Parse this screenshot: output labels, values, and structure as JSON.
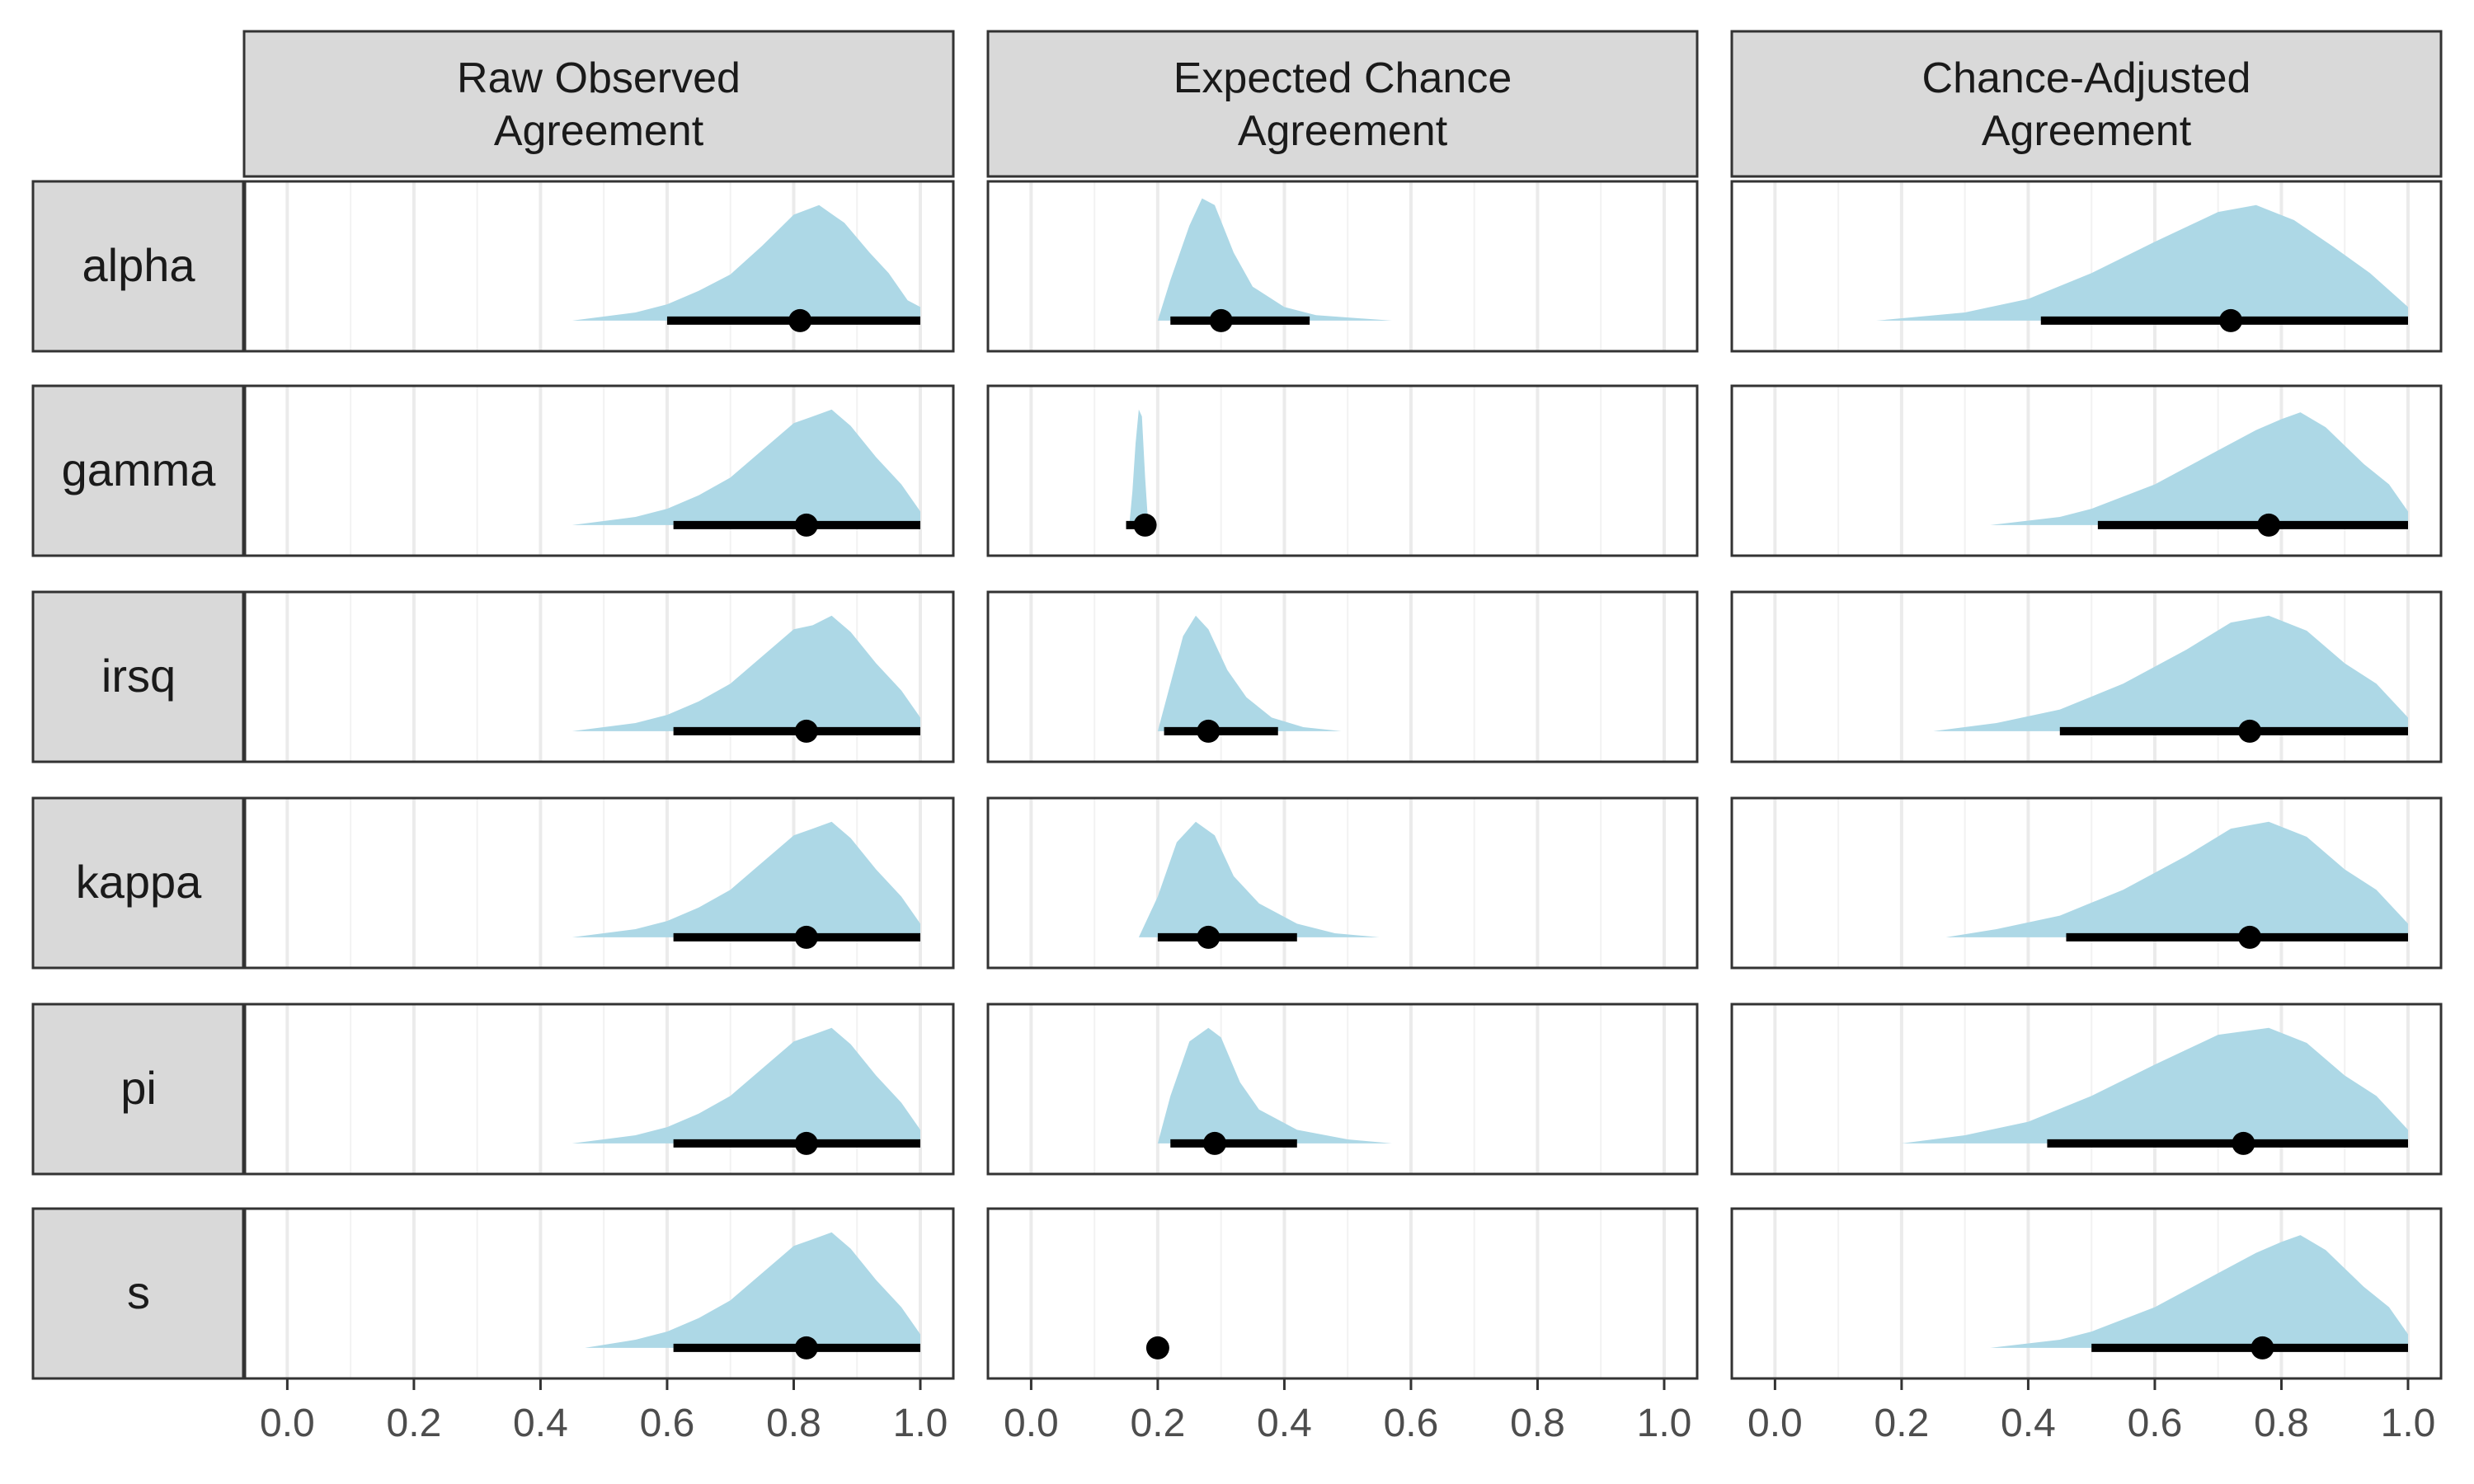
{
  "chart_data": {
    "type": "area",
    "title": "",
    "xlabel": "",
    "ylabel": "",
    "xlim": [
      -0.05,
      1.0
    ],
    "x_ticks": [
      "0.0",
      "0.2",
      "0.4",
      "0.6",
      "0.8",
      "1.0"
    ],
    "grid": true,
    "colors": {
      "density": "#add8e6",
      "interval": "#000000",
      "strip": "#d9d9d9",
      "panel_border": "#333333",
      "grid": "#ebebeb"
    },
    "columns": [
      {
        "key": "raw",
        "label_lines": [
          "Raw Observed",
          "Agreement"
        ]
      },
      {
        "key": "expected",
        "label_lines": [
          "Expected Chance",
          "Agreement"
        ]
      },
      {
        "key": "adjusted",
        "label_lines": [
          "Chance-Adjusted",
          "Agreement"
        ]
      }
    ],
    "rows": [
      "alpha",
      "gamma",
      "irsq",
      "kappa",
      "pi",
      "s"
    ],
    "cells": {
      "alpha": {
        "raw": {
          "density": [
            [
              0.45,
              0.0
            ],
            [
              0.55,
              0.06
            ],
            [
              0.6,
              0.12
            ],
            [
              0.65,
              0.22
            ],
            [
              0.7,
              0.34
            ],
            [
              0.75,
              0.55
            ],
            [
              0.8,
              0.78
            ],
            [
              0.84,
              0.85
            ],
            [
              0.88,
              0.72
            ],
            [
              0.92,
              0.5
            ],
            [
              0.95,
              0.35
            ],
            [
              0.98,
              0.15
            ],
            [
              1.0,
              0.1
            ]
          ],
          "point": 0.81,
          "interval": [
            0.6,
            1.0
          ]
        },
        "expected": {
          "density": [
            [
              0.2,
              0.0
            ],
            [
              0.22,
              0.3
            ],
            [
              0.25,
              0.7
            ],
            [
              0.27,
              0.9
            ],
            [
              0.29,
              0.85
            ],
            [
              0.32,
              0.5
            ],
            [
              0.35,
              0.25
            ],
            [
              0.4,
              0.1
            ],
            [
              0.45,
              0.04
            ],
            [
              0.57,
              0.0
            ]
          ],
          "point": 0.3,
          "interval": [
            0.22,
            0.44
          ]
        },
        "adjusted": {
          "density": [
            [
              0.16,
              0.0
            ],
            [
              0.3,
              0.06
            ],
            [
              0.4,
              0.16
            ],
            [
              0.5,
              0.35
            ],
            [
              0.6,
              0.58
            ],
            [
              0.7,
              0.8
            ],
            [
              0.76,
              0.85
            ],
            [
              0.82,
              0.74
            ],
            [
              0.88,
              0.55
            ],
            [
              0.94,
              0.35
            ],
            [
              1.0,
              0.1
            ]
          ],
          "point": 0.72,
          "interval": [
            0.42,
            1.0
          ]
        }
      },
      "gamma": {
        "raw": {
          "density": [
            [
              0.45,
              0.0
            ],
            [
              0.55,
              0.06
            ],
            [
              0.6,
              0.12
            ],
            [
              0.65,
              0.22
            ],
            [
              0.7,
              0.35
            ],
            [
              0.75,
              0.55
            ],
            [
              0.8,
              0.75
            ],
            [
              0.83,
              0.8
            ],
            [
              0.86,
              0.85
            ],
            [
              0.89,
              0.73
            ],
            [
              0.93,
              0.5
            ],
            [
              0.97,
              0.3
            ],
            [
              1.0,
              0.1
            ]
          ],
          "point": 0.82,
          "interval": [
            0.61,
            1.0
          ]
        },
        "expected": {
          "density": [
            [
              0.155,
              0.0
            ],
            [
              0.16,
              0.25
            ],
            [
              0.165,
              0.6
            ],
            [
              0.17,
              0.85
            ],
            [
              0.175,
              0.8
            ],
            [
              0.18,
              0.35
            ],
            [
              0.185,
              0.0
            ]
          ],
          "point": 0.18,
          "interval": [
            0.15,
            0.18
          ]
        },
        "adjusted": {
          "density": [
            [
              0.34,
              0.0
            ],
            [
              0.45,
              0.06
            ],
            [
              0.5,
              0.12
            ],
            [
              0.6,
              0.3
            ],
            [
              0.7,
              0.55
            ],
            [
              0.76,
              0.7
            ],
            [
              0.8,
              0.78
            ],
            [
              0.83,
              0.83
            ],
            [
              0.87,
              0.72
            ],
            [
              0.93,
              0.45
            ],
            [
              0.97,
              0.3
            ],
            [
              1.0,
              0.1
            ]
          ],
          "point": 0.78,
          "interval": [
            0.51,
            1.0
          ]
        }
      },
      "irsq": {
        "raw": {
          "density": [
            [
              0.45,
              0.0
            ],
            [
              0.55,
              0.06
            ],
            [
              0.6,
              0.12
            ],
            [
              0.65,
              0.22
            ],
            [
              0.7,
              0.35
            ],
            [
              0.75,
              0.55
            ],
            [
              0.8,
              0.75
            ],
            [
              0.83,
              0.78
            ],
            [
              0.86,
              0.85
            ],
            [
              0.89,
              0.73
            ],
            [
              0.93,
              0.5
            ],
            [
              0.97,
              0.3
            ],
            [
              1.0,
              0.1
            ]
          ],
          "point": 0.82,
          "interval": [
            0.61,
            1.0
          ]
        },
        "expected": {
          "density": [
            [
              0.2,
              0.0
            ],
            [
              0.22,
              0.35
            ],
            [
              0.24,
              0.7
            ],
            [
              0.26,
              0.85
            ],
            [
              0.28,
              0.75
            ],
            [
              0.31,
              0.45
            ],
            [
              0.34,
              0.25
            ],
            [
              0.38,
              0.1
            ],
            [
              0.43,
              0.03
            ],
            [
              0.49,
              0.0
            ]
          ],
          "point": 0.28,
          "interval": [
            0.21,
            0.39
          ]
        },
        "adjusted": {
          "density": [
            [
              0.25,
              0.0
            ],
            [
              0.35,
              0.06
            ],
            [
              0.45,
              0.16
            ],
            [
              0.55,
              0.35
            ],
            [
              0.65,
              0.6
            ],
            [
              0.72,
              0.8
            ],
            [
              0.78,
              0.85
            ],
            [
              0.84,
              0.74
            ],
            [
              0.9,
              0.5
            ],
            [
              0.95,
              0.35
            ],
            [
              1.0,
              0.1
            ]
          ],
          "point": 0.75,
          "interval": [
            0.45,
            1.0
          ]
        }
      },
      "kappa": {
        "raw": {
          "density": [
            [
              0.45,
              0.0
            ],
            [
              0.55,
              0.06
            ],
            [
              0.6,
              0.12
            ],
            [
              0.65,
              0.22
            ],
            [
              0.7,
              0.35
            ],
            [
              0.75,
              0.55
            ],
            [
              0.8,
              0.75
            ],
            [
              0.83,
              0.8
            ],
            [
              0.86,
              0.85
            ],
            [
              0.89,
              0.73
            ],
            [
              0.93,
              0.5
            ],
            [
              0.97,
              0.3
            ],
            [
              1.0,
              0.1
            ]
          ],
          "point": 0.82,
          "interval": [
            0.61,
            1.0
          ]
        },
        "expected": {
          "density": [
            [
              0.17,
              0.0
            ],
            [
              0.2,
              0.3
            ],
            [
              0.23,
              0.7
            ],
            [
              0.26,
              0.85
            ],
            [
              0.29,
              0.75
            ],
            [
              0.32,
              0.45
            ],
            [
              0.36,
              0.25
            ],
            [
              0.42,
              0.1
            ],
            [
              0.48,
              0.03
            ],
            [
              0.55,
              0.0
            ]
          ],
          "point": 0.28,
          "interval": [
            0.2,
            0.42
          ]
        },
        "adjusted": {
          "density": [
            [
              0.27,
              0.0
            ],
            [
              0.35,
              0.06
            ],
            [
              0.45,
              0.16
            ],
            [
              0.55,
              0.35
            ],
            [
              0.65,
              0.6
            ],
            [
              0.72,
              0.8
            ],
            [
              0.78,
              0.85
            ],
            [
              0.84,
              0.74
            ],
            [
              0.9,
              0.5
            ],
            [
              0.95,
              0.35
            ],
            [
              1.0,
              0.1
            ]
          ],
          "point": 0.75,
          "interval": [
            0.46,
            1.0
          ]
        }
      },
      "pi": {
        "raw": {
          "density": [
            [
              0.45,
              0.0
            ],
            [
              0.55,
              0.06
            ],
            [
              0.6,
              0.12
            ],
            [
              0.65,
              0.22
            ],
            [
              0.7,
              0.35
            ],
            [
              0.75,
              0.55
            ],
            [
              0.8,
              0.75
            ],
            [
              0.83,
              0.8
            ],
            [
              0.86,
              0.85
            ],
            [
              0.89,
              0.73
            ],
            [
              0.93,
              0.5
            ],
            [
              0.97,
              0.3
            ],
            [
              1.0,
              0.1
            ]
          ],
          "point": 0.82,
          "interval": [
            0.61,
            1.0
          ]
        },
        "expected": {
          "density": [
            [
              0.2,
              0.0
            ],
            [
              0.22,
              0.35
            ],
            [
              0.25,
              0.75
            ],
            [
              0.28,
              0.85
            ],
            [
              0.3,
              0.78
            ],
            [
              0.33,
              0.45
            ],
            [
              0.36,
              0.25
            ],
            [
              0.42,
              0.1
            ],
            [
              0.5,
              0.03
            ],
            [
              0.57,
              0.0
            ]
          ],
          "point": 0.29,
          "interval": [
            0.22,
            0.42
          ]
        },
        "adjusted": {
          "density": [
            [
              0.2,
              0.0
            ],
            [
              0.3,
              0.06
            ],
            [
              0.4,
              0.16
            ],
            [
              0.5,
              0.35
            ],
            [
              0.6,
              0.58
            ],
            [
              0.7,
              0.8
            ],
            [
              0.78,
              0.85
            ],
            [
              0.84,
              0.74
            ],
            [
              0.9,
              0.5
            ],
            [
              0.95,
              0.35
            ],
            [
              1.0,
              0.1
            ]
          ],
          "point": 0.74,
          "interval": [
            0.43,
            1.0
          ]
        }
      },
      "s": {
        "raw": {
          "density": [
            [
              0.47,
              0.0
            ],
            [
              0.55,
              0.06
            ],
            [
              0.6,
              0.12
            ],
            [
              0.65,
              0.22
            ],
            [
              0.7,
              0.35
            ],
            [
              0.75,
              0.55
            ],
            [
              0.8,
              0.75
            ],
            [
              0.83,
              0.8
            ],
            [
              0.86,
              0.85
            ],
            [
              0.89,
              0.73
            ],
            [
              0.93,
              0.5
            ],
            [
              0.97,
              0.3
            ],
            [
              1.0,
              0.1
            ]
          ],
          "point": 0.82,
          "interval": [
            0.61,
            1.0
          ]
        },
        "expected": {
          "density": [],
          "point": 0.2,
          "interval": [
            0.2,
            0.2
          ]
        },
        "adjusted": {
          "density": [
            [
              0.34,
              0.0
            ],
            [
              0.45,
              0.06
            ],
            [
              0.5,
              0.12
            ],
            [
              0.6,
              0.3
            ],
            [
              0.7,
              0.55
            ],
            [
              0.76,
              0.7
            ],
            [
              0.8,
              0.78
            ],
            [
              0.83,
              0.83
            ],
            [
              0.87,
              0.72
            ],
            [
              0.93,
              0.45
            ],
            [
              0.97,
              0.3
            ],
            [
              1.0,
              0.1
            ]
          ],
          "point": 0.77,
          "interval": [
            0.5,
            1.0
          ]
        }
      }
    }
  }
}
